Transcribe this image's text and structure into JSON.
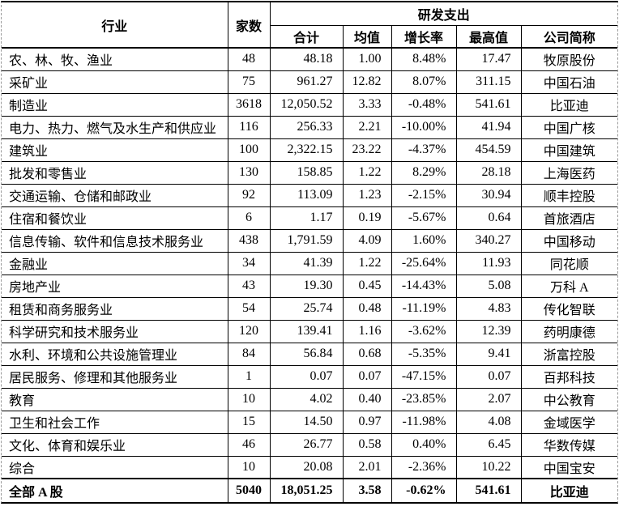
{
  "table": {
    "headers": {
      "industry": "行业",
      "count": "家数",
      "group": "研发支出",
      "sub": {
        "total": "合计",
        "mean": "均值",
        "growth": "增长率",
        "max": "最高值",
        "company": "公司简称"
      }
    },
    "rows": [
      {
        "industry": "农、林、牧、渔业",
        "count": "48",
        "total": "48.18",
        "mean": "1.00",
        "growth": "8.48%",
        "max": "17.47",
        "company": "牧原股份"
      },
      {
        "industry": "采矿业",
        "count": "75",
        "total": "961.27",
        "mean": "12.82",
        "growth": "8.07%",
        "max": "311.15",
        "company": "中国石油"
      },
      {
        "industry": "制造业",
        "count": "3618",
        "total": "12,050.52",
        "mean": "3.33",
        "growth": "-0.48%",
        "max": "541.61",
        "company": "比亚迪"
      },
      {
        "industry": "电力、热力、燃气及水生产和供应业",
        "count": "116",
        "total": "256.33",
        "mean": "2.21",
        "growth": "-10.00%",
        "max": "41.94",
        "company": "中国广核"
      },
      {
        "industry": "建筑业",
        "count": "100",
        "total": "2,322.15",
        "mean": "23.22",
        "growth": "-4.37%",
        "max": "454.59",
        "company": "中国建筑"
      },
      {
        "industry": "批发和零售业",
        "count": "130",
        "total": "158.85",
        "mean": "1.22",
        "growth": "8.29%",
        "max": "28.18",
        "company": "上海医药"
      },
      {
        "industry": "交通运输、仓储和邮政业",
        "count": "92",
        "total": "113.09",
        "mean": "1.23",
        "growth": "-2.15%",
        "max": "30.94",
        "company": "顺丰控股"
      },
      {
        "industry": "住宿和餐饮业",
        "count": "6",
        "total": "1.17",
        "mean": "0.19",
        "growth": "-5.67%",
        "max": "0.64",
        "company": "首旅酒店"
      },
      {
        "industry": "信息传输、软件和信息技术服务业",
        "count": "438",
        "total": "1,791.59",
        "mean": "4.09",
        "growth": "1.60%",
        "max": "340.27",
        "company": "中国移动"
      },
      {
        "industry": "金融业",
        "count": "34",
        "total": "41.39",
        "mean": "1.22",
        "growth": "-25.64%",
        "max": "11.93",
        "company": "同花顺"
      },
      {
        "industry": "房地产业",
        "count": "43",
        "total": "19.30",
        "mean": "0.45",
        "growth": "-14.43%",
        "max": "5.08",
        "company": "万科 A"
      },
      {
        "industry": "租赁和商务服务业",
        "count": "54",
        "total": "25.74",
        "mean": "0.48",
        "growth": "-11.19%",
        "max": "4.83",
        "company": "传化智联"
      },
      {
        "industry": "科学研究和技术服务业",
        "count": "120",
        "total": "139.41",
        "mean": "1.16",
        "growth": "-3.62%",
        "max": "12.39",
        "company": "药明康德"
      },
      {
        "industry": "水利、环境和公共设施管理业",
        "count": "84",
        "total": "56.84",
        "mean": "0.68",
        "growth": "-5.35%",
        "max": "9.41",
        "company": "浙富控股"
      },
      {
        "industry": "居民服务、修理和其他服务业",
        "count": "1",
        "total": "0.07",
        "mean": "0.07",
        "growth": "-47.15%",
        "max": "0.07",
        "company": "百邦科技"
      },
      {
        "industry": "教育",
        "count": "10",
        "total": "4.02",
        "mean": "0.40",
        "growth": "-23.85%",
        "max": "2.07",
        "company": "中公教育"
      },
      {
        "industry": "卫生和社会工作",
        "count": "15",
        "total": "14.50",
        "mean": "0.97",
        "growth": "-11.98%",
        "max": "4.08",
        "company": "金域医学"
      },
      {
        "industry": "文化、体育和娱乐业",
        "count": "46",
        "total": "26.77",
        "mean": "0.58",
        "growth": "0.40%",
        "max": "6.45",
        "company": "华数传媒"
      },
      {
        "industry": "综合",
        "count": "10",
        "total": "20.08",
        "mean": "2.01",
        "growth": "-2.36%",
        "max": "10.22",
        "company": "中国宝安"
      }
    ],
    "total_row": {
      "industry": "全部 A 股",
      "count": "5040",
      "total": "18,051.25",
      "mean": "3.58",
      "growth": "-0.62%",
      "max": "541.61",
      "company": "比亚迪"
    }
  },
  "colors": {
    "text": "#000000",
    "grid": "#000000",
    "outer_dashed": "#9a9a9a",
    "background": "#ffffff"
  }
}
